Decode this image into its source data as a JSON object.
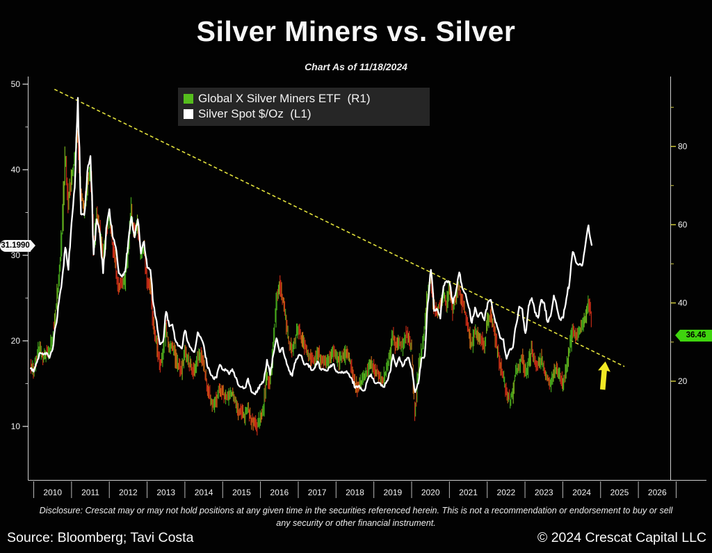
{
  "header": {
    "title": "Silver Miners vs. Silver",
    "subtitle": "Chart As of 11/18/2024"
  },
  "legend": {
    "items": [
      {
        "label": "Global X Silver Miners ETF  (R1)",
        "color": "#55bd1d"
      },
      {
        "label": "Silver Spot $/Oz  (L1)",
        "color": "#ffffff"
      }
    ]
  },
  "badges": {
    "left": {
      "value": "31.1990",
      "color": "#f5f5f5"
    },
    "right": {
      "value": "36.46",
      "color": "#3fd40e"
    }
  },
  "chart_data": {
    "type": "line",
    "title": "Silver Miners vs. Silver",
    "as_of": "11/18/2024",
    "x_start_year": 2010,
    "x_step": "monthly",
    "x_axis": {
      "years": [
        2010,
        2011,
        2012,
        2013,
        2014,
        2015,
        2016,
        2017,
        2018,
        2019,
        2020,
        2021,
        2022,
        2023,
        2024,
        2025,
        2026
      ]
    },
    "left_axis": {
      "series": "Silver Spot $/Oz",
      "ticks": [
        10,
        20,
        30,
        40,
        50
      ],
      "minor_ticks": [
        15,
        25,
        35,
        45
      ],
      "lim": [
        3.7,
        50.9
      ]
    },
    "right_axis": {
      "series": "Global X Silver Miners ETF",
      "ticks": [
        20,
        40,
        60,
        80
      ],
      "minor_ticks": [
        30,
        50,
        70,
        90
      ],
      "lim": [
        -5.2,
        97.9
      ]
    },
    "series": [
      {
        "name": "Global X Silver Miners ETF",
        "axis": "R1",
        "style": "ohlc_bars",
        "up_color": "#46a81c",
        "up_alt_color": "#7ab41e",
        "down_color": "#c92c16",
        "down_alt_color": "#c96a14",
        "last_value": 36.46,
        "monthly_values": [
          24,
          23,
          26,
          29,
          26,
          27,
          27,
          31,
          38,
          46,
          58,
          78,
          66,
          72,
          76,
          83,
          68,
          64,
          70,
          74,
          54,
          62,
          58,
          52,
          58,
          62,
          55,
          50,
          44,
          45,
          46,
          54,
          64,
          58,
          60,
          52,
          54,
          46,
          44,
          34,
          30,
          24,
          26,
          34,
          29,
          30,
          26,
          24,
          23,
          28,
          25,
          24,
          22,
          26,
          27,
          24,
          19,
          16,
          14,
          15,
          18,
          17,
          16,
          16,
          17,
          15,
          12,
          12,
          11,
          13,
          10,
          9.5,
          8.5,
          11,
          13,
          22,
          19,
          28,
          40,
          45,
          41,
          36,
          30,
          28,
          31,
          34,
          31,
          29,
          27,
          26,
          25,
          28,
          26,
          25,
          24,
          26,
          28,
          26,
          25,
          26,
          27,
          26,
          23,
          19,
          18,
          20,
          21,
          23,
          25,
          23,
          22,
          21,
          20,
          24,
          26,
          32,
          29,
          30,
          29,
          32,
          31,
          28,
          12,
          22,
          28,
          32,
          44,
          46,
          39,
          38,
          40,
          42,
          40,
          44,
          38,
          42,
          44,
          40,
          37,
          33,
          29,
          34,
          31,
          31,
          29,
          35,
          37,
          34,
          28,
          24,
          21,
          17,
          15,
          17,
          22,
          24,
          26,
          22,
          24,
          28,
          25,
          24,
          26,
          23,
          21,
          19,
          22,
          23,
          21,
          19,
          23,
          28,
          33,
          32,
          33,
          34,
          36,
          40,
          36.46
        ]
      },
      {
        "name": "Silver Spot $/Oz",
        "axis": "L1",
        "style": "line",
        "color": "#ffffff",
        "last_value": 31.199,
        "monthly_values": [
          16.8,
          16.4,
          17.5,
          18.6,
          18.4,
          18.6,
          18.0,
          19.0,
          21.8,
          24.6,
          27.2,
          30.9,
          28.3,
          33.8,
          37.9,
          48.4,
          34.8,
          34.7,
          39.8,
          41.6,
          30.1,
          34.2,
          32.6,
          27.9,
          33.2,
          35.4,
          32.2,
          31.0,
          27.9,
          27.5,
          28.1,
          31.6,
          34.5,
          32.1,
          34.2,
          30.2,
          31.6,
          28.6,
          28.3,
          24.2,
          22.3,
          19.6,
          19.9,
          23.4,
          21.7,
          21.9,
          20.0,
          19.4,
          19.1,
          21.2,
          19.8,
          19.1,
          18.7,
          21.0,
          20.4,
          19.4,
          17.1,
          16.2,
          15.6,
          15.7,
          17.2,
          16.6,
          16.6,
          16.1,
          16.7,
          15.7,
          14.8,
          14.6,
          14.5,
          15.6,
          14.1,
          13.8,
          14.2,
          14.9,
          15.4,
          17.8,
          16.0,
          18.4,
          20.3,
          18.7,
          19.2,
          17.8,
          16.5,
          15.9,
          17.5,
          18.3,
          18.2,
          17.2,
          17.3,
          16.6,
          16.8,
          17.6,
          16.7,
          16.7,
          16.5,
          16.9,
          17.3,
          16.4,
          16.3,
          16.3,
          16.4,
          16.1,
          15.5,
          14.5,
          14.7,
          14.3,
          14.2,
          15.5,
          16.1,
          15.2,
          15.1,
          15.0,
          14.6,
          15.3,
          16.3,
          18.4,
          17.0,
          18.1,
          17.0,
          17.8,
          18.0,
          16.7,
          14.0,
          15.0,
          17.9,
          18.2,
          24.4,
          28.3,
          23.5,
          23.7,
          22.6,
          26.4,
          27.0,
          26.7,
          24.4,
          25.9,
          28.0,
          26.1,
          25.5,
          23.9,
          22.1,
          23.9,
          22.8,
          23.3,
          22.4,
          24.4,
          24.8,
          23.0,
          21.7,
          20.3,
          20.2,
          17.9,
          19.0,
          19.2,
          21.8,
          24.0,
          23.7,
          20.9,
          24.1,
          25.0,
          23.3,
          22.7,
          24.8,
          24.4,
          22.2,
          22.9,
          25.3,
          23.8,
          22.5,
          22.7,
          25.0,
          26.9,
          30.4,
          29.2,
          28.9,
          28.8,
          31.2,
          33.5,
          31.2
        ]
      }
    ],
    "trendline": {
      "from": {
        "year": 2010.63,
        "value_l1": 49.4
      },
      "to": {
        "year": 2025.7,
        "value_l1": 17.0
      },
      "color": "#e3e23c",
      "style": "dashed"
    },
    "arrow": {
      "year": 2025.15,
      "tip_value_l1": 17.6,
      "base_value_l1": 14.3,
      "color": "#f2e924"
    }
  },
  "footer": {
    "disclosure": "Disclosure: Crescat may or may not hold positions at any given time in the securities referenced herein. This is not a recommendation or endorsement to buy or sell any security or other financial instrument.",
    "source": "Source: Bloomberg; Tavi Costa",
    "copyright": "© 2024 Crescat Capital LLC"
  }
}
